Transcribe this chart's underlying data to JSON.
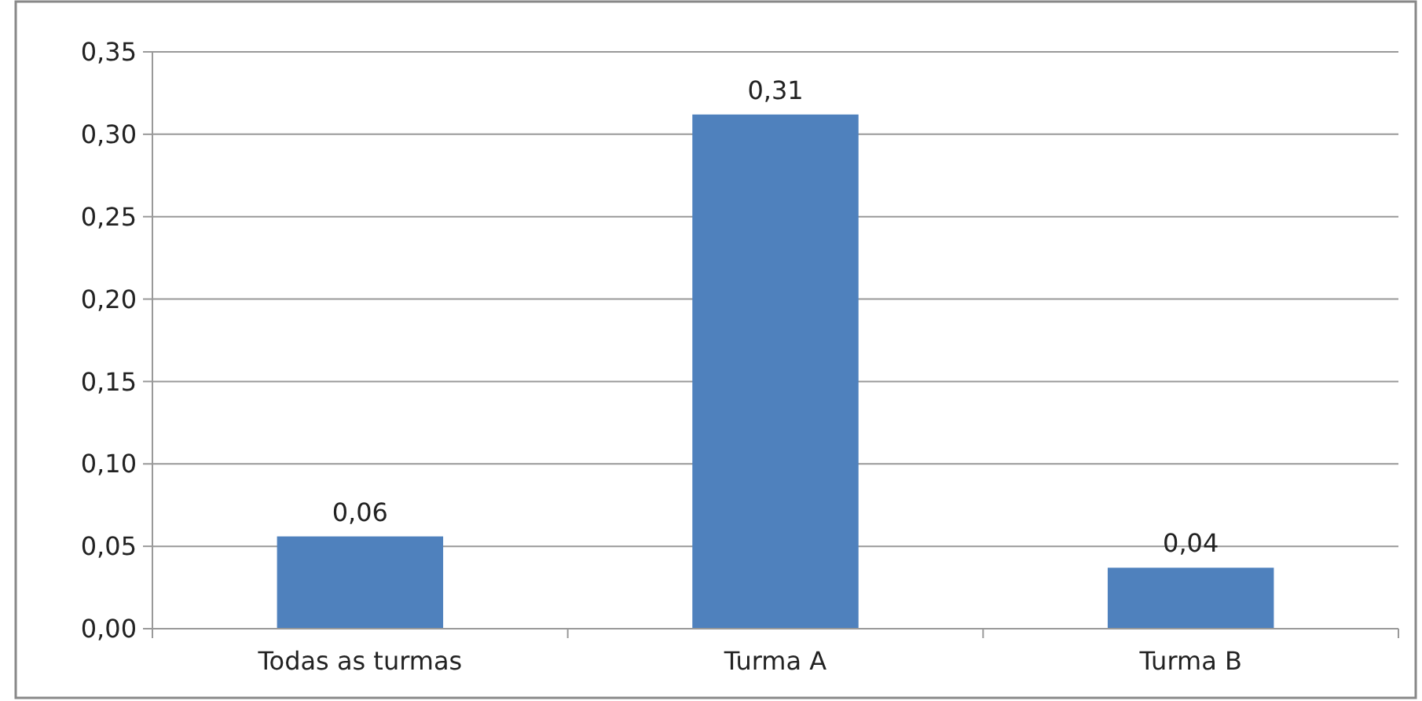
{
  "chart_data": {
    "type": "bar",
    "categories": [
      "Todas as turmas",
      "Turma A",
      "Turma B"
    ],
    "values": [
      0.056,
      0.312,
      0.037
    ],
    "value_labels": [
      "0,06",
      "0,31",
      "0,04"
    ],
    "color": "#4f81bd",
    "ylim": [
      0,
      0.35
    ],
    "yticks": [
      {
        "value": 0,
        "label": "0,00"
      },
      {
        "value": 0.05,
        "label": "0,05"
      },
      {
        "value": 0.1,
        "label": "0,10"
      },
      {
        "value": 0.15,
        "label": "0,15"
      },
      {
        "value": 0.2,
        "label": "0,20"
      },
      {
        "value": 0.25,
        "label": "0,25"
      },
      {
        "value": 0.3,
        "label": "0,30"
      },
      {
        "value": 0.35,
        "label": "0,35"
      }
    ],
    "grid": "y"
  }
}
